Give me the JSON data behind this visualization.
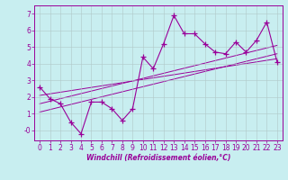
{
  "title": "",
  "xlabel": "Windchill (Refroidissement éolien,°C)",
  "ylabel": "",
  "background_color": "#c8eef0",
  "line_color": "#990099",
  "grid_color": "#b0c8c8",
  "xlim": [
    -0.5,
    23.5
  ],
  "ylim": [
    -0.6,
    7.5
  ],
  "yticks": [
    0,
    1,
    2,
    3,
    4,
    5,
    6,
    7
  ],
  "ytick_labels": [
    "-0",
    "1",
    "2",
    "3",
    "4",
    "5",
    "6",
    "7"
  ],
  "xticks": [
    0,
    1,
    2,
    3,
    4,
    5,
    6,
    7,
    8,
    9,
    10,
    11,
    12,
    13,
    14,
    15,
    16,
    17,
    18,
    19,
    20,
    21,
    22,
    23
  ],
  "x": [
    0,
    1,
    2,
    3,
    4,
    5,
    6,
    7,
    8,
    9,
    10,
    11,
    12,
    13,
    14,
    15,
    16,
    17,
    18,
    19,
    20,
    21,
    22,
    23
  ],
  "y": [
    2.6,
    1.9,
    1.6,
    0.5,
    -0.2,
    1.7,
    1.7,
    1.3,
    0.6,
    1.3,
    4.4,
    3.7,
    5.2,
    6.9,
    5.8,
    5.8,
    5.2,
    4.7,
    4.6,
    5.3,
    4.7,
    5.4,
    6.5,
    4.1
  ],
  "reg_lines": [
    {
      "x0": 0,
      "y0": 1.1,
      "x1": 23,
      "y1": 4.6
    },
    {
      "x0": 0,
      "y0": 1.6,
      "x1": 23,
      "y1": 5.1
    },
    {
      "x0": 0,
      "y0": 2.1,
      "x1": 23,
      "y1": 4.3
    }
  ]
}
